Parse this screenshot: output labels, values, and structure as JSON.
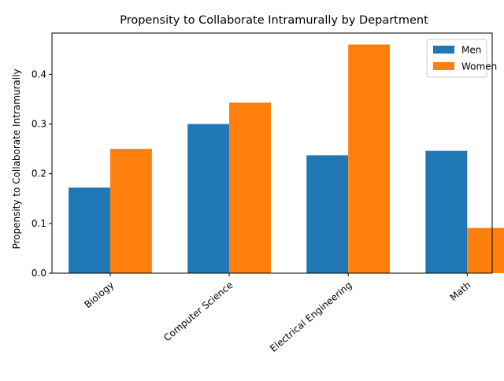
{
  "chart_data": {
    "type": "bar",
    "title": "Propensity to Collaborate Intramurally by Department",
    "xlabel": "",
    "ylabel": "Propensity to Collaborate Intramurally",
    "categories": [
      "Biology",
      "Computer Science",
      "Electrical Engineering",
      "Math"
    ],
    "series": [
      {
        "name": "Men",
        "values": [
          0.172,
          0.3,
          0.237,
          0.246
        ],
        "color": "#1f77b4"
      },
      {
        "name": "Women",
        "values": [
          0.25,
          0.343,
          0.46,
          0.091
        ],
        "color": "#ff7f0e"
      }
    ],
    "yticks": [
      "0.0",
      "0.1",
      "0.2",
      "0.3",
      "0.4"
    ],
    "ylim": [
      0,
      0.483
    ],
    "grid": false,
    "legend_position": "top-right",
    "x_tick_rotation_deg": 40
  }
}
